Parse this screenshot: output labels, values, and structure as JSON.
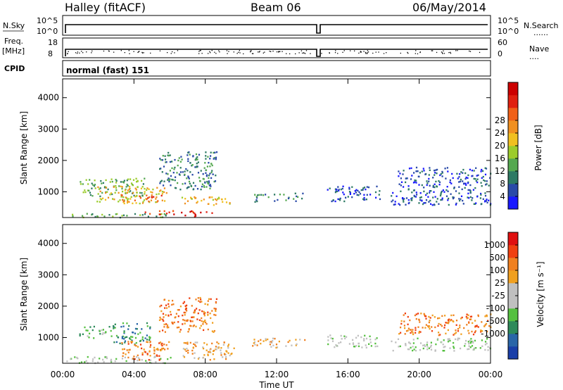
{
  "header": {
    "site": "Halley (fitACF)",
    "beam": "Beam 06",
    "date": "06/May/2014"
  },
  "strip_labels": {
    "nsky": "N.Sky",
    "nsky_ticks": [
      "10^5",
      "10^0"
    ],
    "nsearch": "N.Search",
    "nsearch_ticks": [
      "10^5",
      "10^0"
    ],
    "freq_line1": "Freq.",
    "freq_line2": "[MHz]",
    "freq_ticks": [
      "18",
      "8"
    ],
    "nave": "Nave",
    "nave_ticks": [
      "60",
      "0"
    ],
    "cpid": "CPID",
    "cpid_value": "normal (fast) 151"
  },
  "chart_data": [
    {
      "type": "heatmap",
      "title": "",
      "xlabel": "",
      "ylabel": "Slant Range [km]",
      "ylim": [
        180,
        4600
      ],
      "xlim": [
        0,
        24
      ],
      "yticks": [
        "1000",
        "2000",
        "3000",
        "4000"
      ],
      "colorbar": {
        "label": "Power [dB]",
        "ticks": [
          "4",
          "8",
          "12",
          "16",
          "20",
          "24",
          "28"
        ],
        "colors": [
          "#1a1aff",
          "#2a4aa8",
          "#2e7a64",
          "#55a850",
          "#9ccc2c",
          "#f0c020",
          "#f09020",
          "#f06018",
          "#e02010",
          "#cc0000"
        ]
      },
      "patches": [
        {
          "t0": 0.2,
          "t1": 6.2,
          "r0": 200,
          "r1": 330,
          "c": 3
        },
        {
          "t0": 0.9,
          "t1": 4.6,
          "r0": 880,
          "r1": 1450,
          "c": 3
        },
        {
          "t0": 1.9,
          "t1": 5.8,
          "r0": 650,
          "r1": 1200,
          "c": 5
        },
        {
          "t0": 3.2,
          "t1": 5.6,
          "r0": 700,
          "r1": 950,
          "c": 7
        },
        {
          "t0": 4.6,
          "t1": 8.4,
          "r0": 240,
          "r1": 420,
          "c": 8
        },
        {
          "t0": 5.4,
          "t1": 8.6,
          "r0": 1100,
          "r1": 2300,
          "c": 2
        },
        {
          "t0": 6.6,
          "t1": 9.6,
          "r0": 600,
          "r1": 860,
          "c": 5
        },
        {
          "t0": 10.6,
          "t1": 13.6,
          "r0": 700,
          "r1": 980,
          "c": 2
        },
        {
          "t0": 14.8,
          "t1": 17.8,
          "r0": 700,
          "r1": 1200,
          "c": 1
        },
        {
          "t0": 18.4,
          "t1": 24.0,
          "r0": 600,
          "r1": 1000,
          "c": 1
        },
        {
          "t0": 18.8,
          "t1": 24.0,
          "r0": 1000,
          "r1": 1800,
          "c": 1
        }
      ]
    },
    {
      "type": "heatmap",
      "title": "",
      "xlabel": "Time UT",
      "ylabel": "Slant Range [km]",
      "ylim": [
        180,
        4600
      ],
      "xlim": [
        0,
        24
      ],
      "yticks": [
        "1000",
        "2000",
        "3000",
        "4000"
      ],
      "xticks": [
        "00:00",
        "04:00",
        "08:00",
        "12:00",
        "16:00",
        "20:00",
        "00:00"
      ],
      "colorbar": {
        "label": "Velocity [m s⁻¹]",
        "ticks": [
          "1000",
          "500",
          "100",
          "25",
          "-25",
          "-100",
          "-500",
          "-1000"
        ],
        "colors": [
          "#1a3fa8",
          "#2a66a8",
          "#2e8a5a",
          "#55c040",
          "#c0c0c0",
          "#c0c0c0",
          "#f0a020",
          "#f08020",
          "#f04010",
          "#e01010"
        ]
      },
      "patches": [
        {
          "t0": 0.2,
          "t1": 6.2,
          "r0": 200,
          "r1": 420,
          "c": 4
        },
        {
          "t0": 0.9,
          "t1": 2.8,
          "r0": 1000,
          "r1": 1400,
          "c": 3
        },
        {
          "t0": 2.8,
          "t1": 5.0,
          "r0": 800,
          "r1": 1500,
          "c": 2
        },
        {
          "t0": 3.2,
          "t1": 6.0,
          "r0": 300,
          "r1": 900,
          "c": 7
        },
        {
          "t0": 5.4,
          "t1": 8.6,
          "r0": 1200,
          "r1": 2300,
          "c": 7
        },
        {
          "t0": 6.6,
          "t1": 9.6,
          "r0": 300,
          "r1": 900,
          "c": 6
        },
        {
          "t0": 10.6,
          "t1": 13.6,
          "r0": 700,
          "r1": 1000,
          "c": 6
        },
        {
          "t0": 14.8,
          "t1": 17.8,
          "r0": 700,
          "r1": 1100,
          "c": 4
        },
        {
          "t0": 18.4,
          "t1": 24.0,
          "r0": 600,
          "r1": 1000,
          "c": 4
        },
        {
          "t0": 18.8,
          "t1": 24.0,
          "r0": 1100,
          "r1": 1800,
          "c": 7
        }
      ]
    }
  ]
}
